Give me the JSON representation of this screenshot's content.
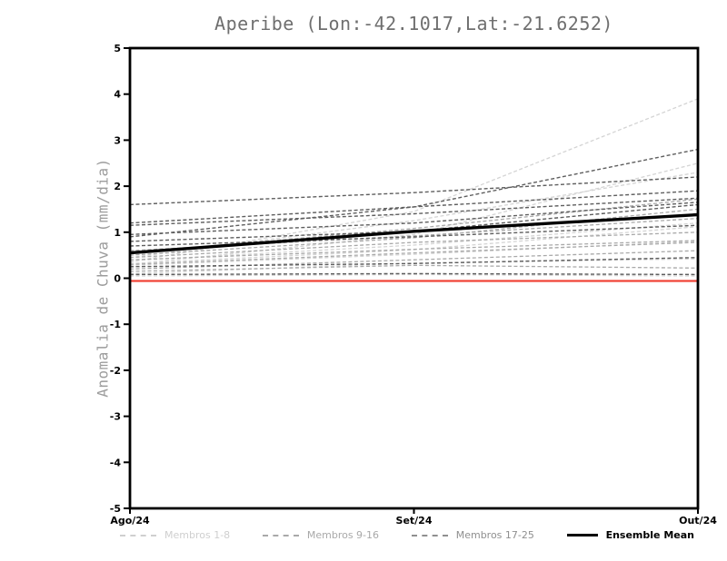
{
  "chart_data": {
    "type": "line",
    "title": "Aperibe (Lon:-42.1017,Lat:-21.6252)",
    "ylabel": "Anomalia de Chuva (mm/dia)",
    "xlabel": "",
    "x_categories": [
      "Ago/24",
      "Set/24",
      "Out/24"
    ],
    "ylim": [
      -5,
      5
    ],
    "y_ticks": [
      5,
      4,
      3,
      2,
      1,
      0,
      -1,
      -2,
      -3,
      -4,
      -5
    ],
    "grid": false,
    "frame": "box",
    "legend_position": "bottom",
    "colors": {
      "members_1_8": "#d4d4d4",
      "members_9_16": "#a9a9a9",
      "members_17_25": "#5e5e5e",
      "ensemble_mean": "#000000",
      "zero_line": "#f04438",
      "axis": "#000000",
      "title_text": "#6f6f6f",
      "ylabel_text": "#9c9c9c"
    },
    "series": [
      {
        "name": "Membro 1",
        "group": "Membros 1-8",
        "color": "#d4d4d4",
        "style": "dashed",
        "width": 1.3,
        "values": [
          0.35,
          1.45,
          3.9
        ]
      },
      {
        "name": "Membro 2",
        "group": "Membros 1-8",
        "color": "#d4d4d4",
        "style": "dashed",
        "width": 1.3,
        "values": [
          0.3,
          0.95,
          2.5
        ]
      },
      {
        "name": "Membro 3",
        "group": "Membros 1-8",
        "color": "#d4d4d4",
        "style": "dashed",
        "width": 1.3,
        "values": [
          0.45,
          1.25,
          2.3
        ]
      },
      {
        "name": "Membro 4",
        "group": "Membros 1-8",
        "color": "#d4d4d4",
        "style": "dashed",
        "width": 1.3,
        "values": [
          0.32,
          0.62,
          1.12
        ]
      },
      {
        "name": "Membro 5",
        "group": "Membros 1-8",
        "color": "#d4d4d4",
        "style": "dashed",
        "width": 1.3,
        "values": [
          0.28,
          0.52,
          0.8
        ]
      },
      {
        "name": "Membro 6",
        "group": "Membros 1-8",
        "color": "#d4d4d4",
        "style": "dashed",
        "width": 1.3,
        "values": [
          0.1,
          0.33,
          0.42
        ]
      },
      {
        "name": "Membro 7",
        "group": "Membros 1-8",
        "color": "#d4d4d4",
        "style": "dashed",
        "width": 1.3,
        "values": [
          0.05,
          0.08,
          0.05
        ]
      },
      {
        "name": "Membro 8",
        "group": "Membros 1-8",
        "color": "#d4d4d4",
        "style": "dashed",
        "width": 1.3,
        "values": [
          0.38,
          0.72,
          1.2
        ]
      },
      {
        "name": "Membro 9",
        "group": "Membros 9-16",
        "color": "#a9a9a9",
        "style": "dashed",
        "width": 1.3,
        "values": [
          0.5,
          0.88,
          1.5
        ]
      },
      {
        "name": "Membro 10",
        "group": "Membros 9-16",
        "color": "#a9a9a9",
        "style": "dashed",
        "width": 1.3,
        "values": [
          0.45,
          0.78,
          1.0
        ]
      },
      {
        "name": "Membro 11",
        "group": "Membros 9-16",
        "color": "#a9a9a9",
        "style": "dashed",
        "width": 1.3,
        "values": [
          0.6,
          0.92,
          1.3
        ]
      },
      {
        "name": "Membro 12",
        "group": "Membros 9-16",
        "color": "#a9a9a9",
        "style": "dashed",
        "width": 1.3,
        "values": [
          0.4,
          0.63,
          0.82
        ]
      },
      {
        "name": "Membro 13",
        "group": "Membros 9-16",
        "color": "#a9a9a9",
        "style": "dashed",
        "width": 1.3,
        "values": [
          0.3,
          0.55,
          0.78
        ]
      },
      {
        "name": "Membro 14",
        "group": "Membros 9-16",
        "color": "#a9a9a9",
        "style": "dashed",
        "width": 1.3,
        "values": [
          0.2,
          0.4,
          0.6
        ]
      },
      {
        "name": "Membro 15",
        "group": "Membros 9-16",
        "color": "#a9a9a9",
        "style": "dashed",
        "width": 1.3,
        "values": [
          0.15,
          0.28,
          0.22
        ]
      },
      {
        "name": "Membro 16",
        "group": "Membros 9-16",
        "color": "#a9a9a9",
        "style": "dashed",
        "width": 1.3,
        "values": [
          0.55,
          1.08,
          1.72
        ]
      },
      {
        "name": "Membro 17",
        "group": "Membros 17-25",
        "color": "#5e5e5e",
        "style": "dashed",
        "width": 1.4,
        "values": [
          1.6,
          1.86,
          2.2
        ]
      },
      {
        "name": "Membro 18",
        "group": "Membros 17-25",
        "color": "#5e5e5e",
        "style": "dashed",
        "width": 1.4,
        "values": [
          1.2,
          1.55,
          1.9
        ]
      },
      {
        "name": "Membro 19",
        "group": "Membros 17-25",
        "color": "#5e5e5e",
        "style": "dashed",
        "width": 1.4,
        "values": [
          1.15,
          1.4,
          1.74
        ]
      },
      {
        "name": "Membro 20",
        "group": "Membros 17-25",
        "color": "#5e5e5e",
        "style": "dashed",
        "width": 1.4,
        "values": [
          0.9,
          1.55,
          2.8
        ]
      },
      {
        "name": "Membro 21",
        "group": "Membros 17-25",
        "color": "#5e5e5e",
        "style": "dashed",
        "width": 1.4,
        "values": [
          0.95,
          1.2,
          1.65
        ]
      },
      {
        "name": "Membro 22",
        "group": "Membros 17-25",
        "color": "#5e5e5e",
        "style": "dashed",
        "width": 1.4,
        "values": [
          0.8,
          1.02,
          1.6
        ]
      },
      {
        "name": "Membro 23",
        "group": "Membros 17-25",
        "color": "#5e5e5e",
        "style": "dashed",
        "width": 1.4,
        "values": [
          0.7,
          0.9,
          1.15
        ]
      },
      {
        "name": "Membro 24",
        "group": "Membros 17-25",
        "color": "#5e5e5e",
        "style": "dashed",
        "width": 1.4,
        "values": [
          0.25,
          0.32,
          0.45
        ]
      },
      {
        "name": "Membro 25",
        "group": "Membros 17-25",
        "color": "#5e5e5e",
        "style": "dashed",
        "width": 1.4,
        "values": [
          0.08,
          0.1,
          0.08
        ]
      },
      {
        "name": "zero-line",
        "group": "reference",
        "color": "#f04438",
        "style": "solid",
        "width": 2.2,
        "values": [
          -0.06,
          -0.06,
          -0.06
        ]
      },
      {
        "name": "Ensemble Mean",
        "group": "mean",
        "color": "#000000",
        "style": "solid",
        "width": 3.4,
        "values": [
          0.55,
          1.02,
          1.38
        ]
      }
    ],
    "legend": [
      {
        "label": "Membros 1-8",
        "color": "#cfcfcf",
        "line_style": "dashed"
      },
      {
        "label": "Membros 9-16",
        "color": "#a9a9a9",
        "line_style": "dashed"
      },
      {
        "label": "Membros 17-25",
        "color": "#8f8f8f",
        "line_style": "dashed"
      },
      {
        "label": "Ensemble Mean",
        "color": "#000000",
        "line_style": "solid"
      }
    ]
  }
}
